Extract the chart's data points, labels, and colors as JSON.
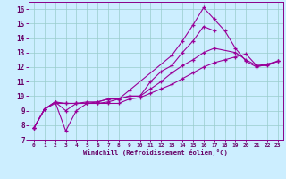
{
  "xlabel": "Windchill (Refroidissement éolien,°C)",
  "bg_color": "#cceeff",
  "line_color": "#990099",
  "grid_color": "#99cccc",
  "xlim": [
    -0.5,
    23.5
  ],
  "ylim": [
    7,
    16.5
  ],
  "xticks": [
    0,
    1,
    2,
    3,
    4,
    5,
    6,
    7,
    8,
    9,
    10,
    11,
    12,
    13,
    14,
    15,
    16,
    17,
    18,
    19,
    20,
    21,
    22,
    23
  ],
  "yticks": [
    7,
    8,
    9,
    10,
    11,
    12,
    13,
    14,
    15,
    16
  ],
  "line1_x": [
    0,
    1,
    2,
    3,
    4,
    5,
    6,
    7,
    8,
    9,
    13,
    14,
    15,
    16,
    17,
    18,
    19,
    20,
    21,
    22,
    23
  ],
  "line1_y": [
    7.8,
    9.1,
    9.6,
    7.6,
    9.0,
    9.5,
    9.5,
    9.6,
    9.8,
    10.4,
    12.8,
    13.8,
    14.9,
    16.1,
    15.3,
    14.5,
    13.3,
    12.4,
    12.0,
    12.2,
    12.4
  ],
  "line2_x": [
    0,
    1,
    2,
    3,
    4,
    5,
    6,
    7,
    8,
    9,
    10,
    11,
    12,
    13,
    14,
    15,
    16,
    17
  ],
  "line2_y": [
    7.8,
    9.1,
    9.6,
    9.0,
    9.5,
    9.5,
    9.6,
    9.8,
    9.8,
    10.0,
    10.0,
    11.0,
    11.7,
    12.1,
    13.0,
    13.8,
    14.8,
    14.5
  ],
  "line3_x": [
    0,
    1,
    2,
    3,
    4,
    5,
    6,
    7,
    8,
    9,
    10,
    11,
    12,
    13,
    14,
    15,
    16,
    17,
    19,
    20,
    21,
    22,
    23
  ],
  "line3_y": [
    7.8,
    9.1,
    9.6,
    9.5,
    9.5,
    9.6,
    9.6,
    9.8,
    9.8,
    10.0,
    10.0,
    10.5,
    11.0,
    11.6,
    12.1,
    12.5,
    13.0,
    13.3,
    13.0,
    12.5,
    12.1,
    12.2,
    12.4
  ],
  "line4_x": [
    0,
    1,
    2,
    3,
    4,
    5,
    6,
    7,
    8,
    9,
    10,
    11,
    12,
    13,
    14,
    15,
    16,
    17,
    18,
    19,
    20,
    21,
    22,
    23
  ],
  "line4_y": [
    7.8,
    9.1,
    9.5,
    9.5,
    9.5,
    9.5,
    9.5,
    9.5,
    9.5,
    9.8,
    9.9,
    10.2,
    10.5,
    10.8,
    11.2,
    11.6,
    12.0,
    12.3,
    12.5,
    12.7,
    12.9,
    12.1,
    12.1,
    12.4
  ]
}
